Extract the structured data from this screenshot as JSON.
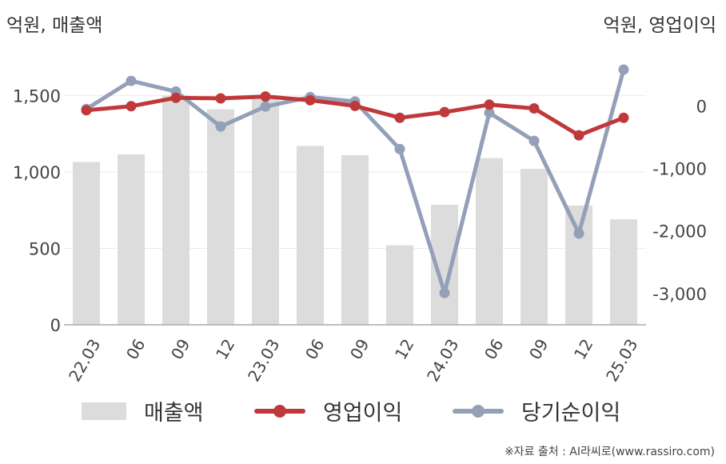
{
  "units": {
    "left": "억원, 매출액",
    "right": "억원, 영업이익"
  },
  "chart_data": {
    "type": "bar+line",
    "categories": [
      "22.03",
      "06",
      "09",
      "12",
      "23.03",
      "06",
      "09",
      "12",
      "24.03",
      "06",
      "09",
      "12",
      "25.03"
    ],
    "bar_series": {
      "name": "매출액",
      "axis": "left",
      "color": "#dcdcdc",
      "values": [
        1065,
        1115,
        1500,
        1410,
        1480,
        1170,
        1110,
        520,
        785,
        1090,
        1020,
        780,
        690
      ]
    },
    "line_series": [
      {
        "name": "영업이익",
        "axis": "right",
        "color": "#c0393a",
        "values": [
          -70,
          -5,
          130,
          120,
          150,
          90,
          0,
          -190,
          -100,
          20,
          -40,
          -470,
          -190
        ]
      },
      {
        "name": "당기순이익",
        "axis": "right",
        "color": "#93a0b8",
        "values": [
          -50,
          400,
          230,
          -330,
          -10,
          140,
          70,
          -690,
          -2990,
          -110,
          -560,
          -2040,
          580
        ]
      }
    ],
    "left_axis": {
      "ylim": [
        0,
        1800
      ],
      "ticks": [
        0,
        500,
        1000,
        1500
      ],
      "tick_labels": [
        "0",
        "500",
        "1,000",
        "1,500"
      ]
    },
    "right_axis": {
      "ylim": [
        -3500,
        900
      ],
      "ticks": [
        -3000,
        -2000,
        -1000,
        0
      ],
      "tick_labels": [
        "-3,000",
        "-2,000",
        "-1,000",
        "0"
      ]
    },
    "grid": true,
    "legend_position": "bottom"
  },
  "legend": [
    "매출액",
    "영업이익",
    "당기순이익"
  ],
  "source": "※자료 출처 : AI라씨로(www.rassiro.com)"
}
